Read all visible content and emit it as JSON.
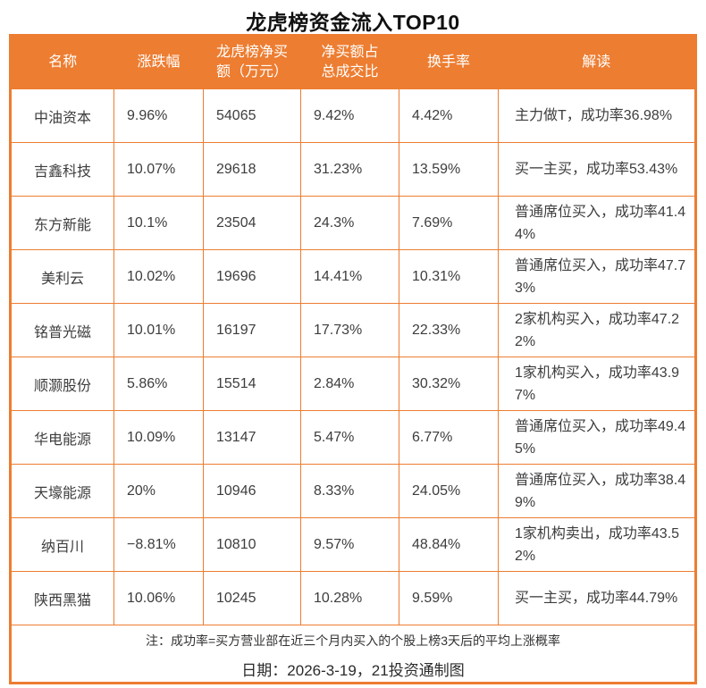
{
  "title": "龙虎榜资金流入TOP10",
  "colors": {
    "accent": "#ED7D31",
    "header_text": "#FFFFFF",
    "body_text": "#3D3D3D"
  },
  "table": {
    "headers": [
      "名称",
      "涨跌幅",
      "龙虎榜净买\n额（万元）",
      "净买额占\n总成交比",
      "换手率",
      "解读"
    ],
    "rows": [
      {
        "name": "中油资本",
        "change": "9.96%",
        "net_buy": "54065",
        "net_buy_ratio": "9.42%",
        "turnover": "4.42%",
        "note": "主力做T，成功率36.98%"
      },
      {
        "name": "吉鑫科技",
        "change": "10.07%",
        "net_buy": "29618",
        "net_buy_ratio": "31.23%",
        "turnover": "13.59%",
        "note": "买一主买，成功率53.43%"
      },
      {
        "name": "东方新能",
        "change": "10.1%",
        "net_buy": "23504",
        "net_buy_ratio": "24.3%",
        "turnover": "7.69%",
        "note": "普通席位买入，成功率41.44%"
      },
      {
        "name": "美利云",
        "change": "10.02%",
        "net_buy": "19696",
        "net_buy_ratio": "14.41%",
        "turnover": "10.31%",
        "note": "普通席位买入，成功率47.73%"
      },
      {
        "name": "铭普光磁",
        "change": "10.01%",
        "net_buy": "16197",
        "net_buy_ratio": "17.73%",
        "turnover": "22.33%",
        "note": "2家机构买入，成功率47.22%"
      },
      {
        "name": "顺灏股份",
        "change": "5.86%",
        "net_buy": "15514",
        "net_buy_ratio": "2.84%",
        "turnover": "30.32%",
        "note": "1家机构买入，成功率43.97%"
      },
      {
        "name": "华电能源",
        "change": "10.09%",
        "net_buy": "13147",
        "net_buy_ratio": "5.47%",
        "turnover": "6.77%",
        "note": "普通席位买入，成功率49.45%"
      },
      {
        "name": "天壕能源",
        "change": "20%",
        "net_buy": "10946",
        "net_buy_ratio": "8.33%",
        "turnover": "24.05%",
        "note": "普通席位买入，成功率38.49%"
      },
      {
        "name": "纳百川",
        "change": "−8.81%",
        "net_buy": "10810",
        "net_buy_ratio": "9.57%",
        "turnover": "48.84%",
        "note": "1家机构卖出，成功率43.52%"
      },
      {
        "name": "陕西黑猫",
        "change": "10.06%",
        "net_buy": "10245",
        "net_buy_ratio": "10.28%",
        "turnover": "9.59%",
        "note": "买一主买，成功率44.79%"
      }
    ]
  },
  "footer": {
    "note": "注：成功率=买方营业部在近三个月内买入的个股上榜3天后的平均上涨概率",
    "date_line": "日期：2026-3-19，21投资通制图"
  },
  "chart_data": {
    "type": "table",
    "title": "龙虎榜资金流入TOP10",
    "columns": [
      "名称",
      "涨跌幅",
      "龙虎榜净买额（万元）",
      "净买额占总成交比",
      "换手率",
      "解读"
    ],
    "rows": [
      [
        "中油资本",
        "9.96%",
        54065,
        "9.42%",
        "4.42%",
        "主力做T，成功率36.98%"
      ],
      [
        "吉鑫科技",
        "10.07%",
        29618,
        "31.23%",
        "13.59%",
        "买一主买，成功率53.43%"
      ],
      [
        "东方新能",
        "10.1%",
        23504,
        "24.3%",
        "7.69%",
        "普通席位买入，成功率41.44%"
      ],
      [
        "美利云",
        "10.02%",
        19696,
        "14.41%",
        "10.31%",
        "普通席位买入，成功率47.73%"
      ],
      [
        "铭普光磁",
        "10.01%",
        16197,
        "17.73%",
        "22.33%",
        "2家机构买入，成功率47.22%"
      ],
      [
        "顺灏股份",
        "5.86%",
        15514,
        "2.84%",
        "30.32%",
        "1家机构买入，成功率43.97%"
      ],
      [
        "华电能源",
        "10.09%",
        13147,
        "5.47%",
        "6.77%",
        "普通席位买入，成功率49.45%"
      ],
      [
        "天壕能源",
        "20%",
        10946,
        "8.33%",
        "24.05%",
        "普通席位买入，成功率38.49%"
      ],
      [
        "纳百川",
        "−8.81%",
        10810,
        "9.57%",
        "48.84%",
        "1家机构卖出，成功率43.52%"
      ],
      [
        "陕西黑猫",
        "10.06%",
        10245,
        "10.28%",
        "9.59%",
        "买一主买，成功率44.79%"
      ]
    ],
    "notes": [
      "注：成功率=买方营业部在近三个月内买入的个股上榜3天后的平均上涨概率",
      "日期：2026-3-19，21投资通制图"
    ]
  }
}
